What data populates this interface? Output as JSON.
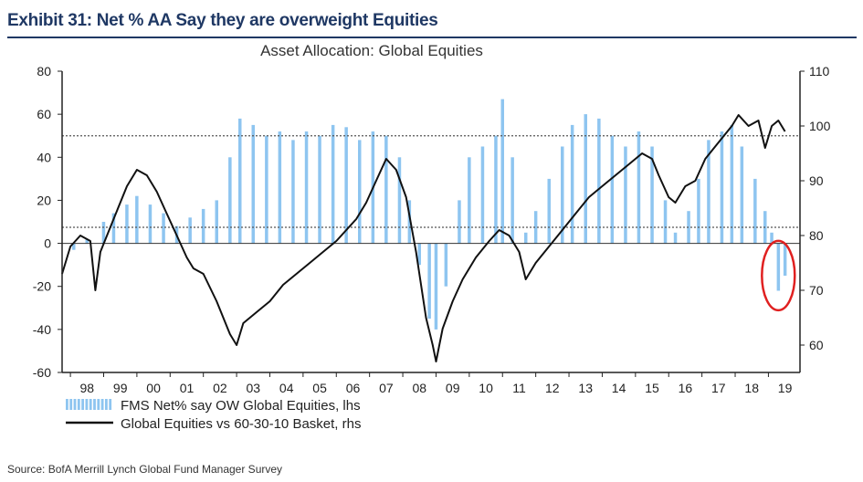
{
  "exhibit_title": "Exhibit 31: Net % AA Say they are overweight Equities",
  "source": "Source:  BofA Merrill Lynch Global Fund Manager Survey",
  "colors": {
    "bars": "#8ec5f0",
    "line": "#111111",
    "highlight": "#e02020",
    "title": "#1f3864",
    "axis": "#222222"
  },
  "chart_data": {
    "type": "bar+line",
    "title": "Asset Allocation: Global Equities",
    "x_tick_labels": [
      "98",
      "99",
      "00",
      "01",
      "02",
      "03",
      "04",
      "05",
      "06",
      "07",
      "08",
      "09",
      "10",
      "11",
      "12",
      "13",
      "14",
      "15",
      "16",
      "17",
      "18",
      "19"
    ],
    "y_left": {
      "ticks": [
        "80",
        "60",
        "40",
        "20",
        "0",
        "-20",
        "-40",
        "-60"
      ],
      "ylim": [
        -60,
        80
      ]
    },
    "y_right": {
      "ticks": [
        "110",
        "100",
        "90",
        "80",
        "70",
        "60"
      ],
      "ylim": [
        55,
        110
      ]
    },
    "reference_lines": {
      "left_axis_level": 50,
      "right_axis_level": 81.5
    },
    "highlight": "circle around the latest 2019 readings",
    "series": [
      {
        "name": "FMS Net% say OW Global Equities, lhs",
        "axis": "left",
        "kind": "bar",
        "points": [
          [
            1998.1,
            -3
          ],
          [
            1998.5,
            2
          ],
          [
            1999.0,
            10
          ],
          [
            1999.3,
            14
          ],
          [
            1999.7,
            18
          ],
          [
            2000.0,
            22
          ],
          [
            2000.4,
            18
          ],
          [
            2000.8,
            14
          ],
          [
            2001.2,
            8
          ],
          [
            2001.6,
            12
          ],
          [
            2002.0,
            16
          ],
          [
            2002.4,
            20
          ],
          [
            2002.8,
            40
          ],
          [
            2003.1,
            58
          ],
          [
            2003.5,
            55
          ],
          [
            2003.9,
            50
          ],
          [
            2004.3,
            52
          ],
          [
            2004.7,
            48
          ],
          [
            2005.1,
            52
          ],
          [
            2005.5,
            50
          ],
          [
            2005.9,
            55
          ],
          [
            2006.3,
            54
          ],
          [
            2006.7,
            48
          ],
          [
            2007.1,
            52
          ],
          [
            2007.5,
            50
          ],
          [
            2007.9,
            40
          ],
          [
            2008.2,
            20
          ],
          [
            2008.5,
            -10
          ],
          [
            2008.8,
            -35
          ],
          [
            2009.0,
            -40
          ],
          [
            2009.3,
            -20
          ],
          [
            2009.7,
            20
          ],
          [
            2010.0,
            40
          ],
          [
            2010.4,
            45
          ],
          [
            2010.8,
            50
          ],
          [
            2011.0,
            67
          ],
          [
            2011.3,
            40
          ],
          [
            2011.7,
            5
          ],
          [
            2012.0,
            15
          ],
          [
            2012.4,
            30
          ],
          [
            2012.8,
            45
          ],
          [
            2013.1,
            55
          ],
          [
            2013.5,
            60
          ],
          [
            2013.9,
            58
          ],
          [
            2014.3,
            50
          ],
          [
            2014.7,
            45
          ],
          [
            2015.1,
            52
          ],
          [
            2015.5,
            45
          ],
          [
            2015.9,
            20
          ],
          [
            2016.2,
            5
          ],
          [
            2016.6,
            15
          ],
          [
            2016.9,
            30
          ],
          [
            2017.2,
            48
          ],
          [
            2017.6,
            52
          ],
          [
            2017.9,
            55
          ],
          [
            2018.2,
            45
          ],
          [
            2018.6,
            30
          ],
          [
            2018.9,
            15
          ],
          [
            2019.1,
            5
          ],
          [
            2019.3,
            -22
          ],
          [
            2019.5,
            -15
          ]
        ]
      },
      {
        "name": "Global Equities vs 60-30-10 Basket, rhs",
        "axis": "right",
        "kind": "line",
        "points": [
          [
            1997.75,
            73
          ],
          [
            1998.0,
            78
          ],
          [
            1998.3,
            80
          ],
          [
            1998.6,
            79
          ],
          [
            1998.75,
            70
          ],
          [
            1998.9,
            77
          ],
          [
            1999.3,
            83
          ],
          [
            1999.7,
            89
          ],
          [
            2000.0,
            92
          ],
          [
            2000.3,
            91
          ],
          [
            2000.6,
            88
          ],
          [
            2000.9,
            84
          ],
          [
            2001.2,
            80
          ],
          [
            2001.5,
            76
          ],
          [
            2001.7,
            74
          ],
          [
            2002.0,
            73
          ],
          [
            2002.4,
            68
          ],
          [
            2002.8,
            62
          ],
          [
            2003.0,
            60
          ],
          [
            2003.2,
            64
          ],
          [
            2003.6,
            66
          ],
          [
            2004.0,
            68
          ],
          [
            2004.4,
            71
          ],
          [
            2004.8,
            73
          ],
          [
            2005.2,
            75
          ],
          [
            2005.6,
            77
          ],
          [
            2006.0,
            79
          ],
          [
            2006.3,
            81
          ],
          [
            2006.6,
            83
          ],
          [
            2006.9,
            86
          ],
          [
            2007.2,
            90
          ],
          [
            2007.5,
            94
          ],
          [
            2007.8,
            92
          ],
          [
            2008.1,
            87
          ],
          [
            2008.4,
            77
          ],
          [
            2008.7,
            65
          ],
          [
            2008.9,
            60
          ],
          [
            2009.0,
            57
          ],
          [
            2009.2,
            63
          ],
          [
            2009.5,
            68
          ],
          [
            2009.8,
            72
          ],
          [
            2010.2,
            76
          ],
          [
            2010.6,
            79
          ],
          [
            2010.9,
            81
          ],
          [
            2011.2,
            80
          ],
          [
            2011.5,
            77
          ],
          [
            2011.7,
            72
          ],
          [
            2012.0,
            75
          ],
          [
            2012.4,
            78
          ],
          [
            2012.8,
            81
          ],
          [
            2013.2,
            84
          ],
          [
            2013.6,
            87
          ],
          [
            2014.0,
            89
          ],
          [
            2014.4,
            91
          ],
          [
            2014.8,
            93
          ],
          [
            2015.2,
            95
          ],
          [
            2015.5,
            94
          ],
          [
            2015.7,
            91
          ],
          [
            2016.0,
            87
          ],
          [
            2016.2,
            86
          ],
          [
            2016.5,
            89
          ],
          [
            2016.8,
            90
          ],
          [
            2017.1,
            94
          ],
          [
            2017.5,
            97
          ],
          [
            2017.9,
            100
          ],
          [
            2018.1,
            102
          ],
          [
            2018.4,
            100
          ],
          [
            2018.7,
            101
          ],
          [
            2018.9,
            96
          ],
          [
            2019.1,
            100
          ],
          [
            2019.3,
            101
          ],
          [
            2019.5,
            99
          ]
        ]
      }
    ]
  }
}
